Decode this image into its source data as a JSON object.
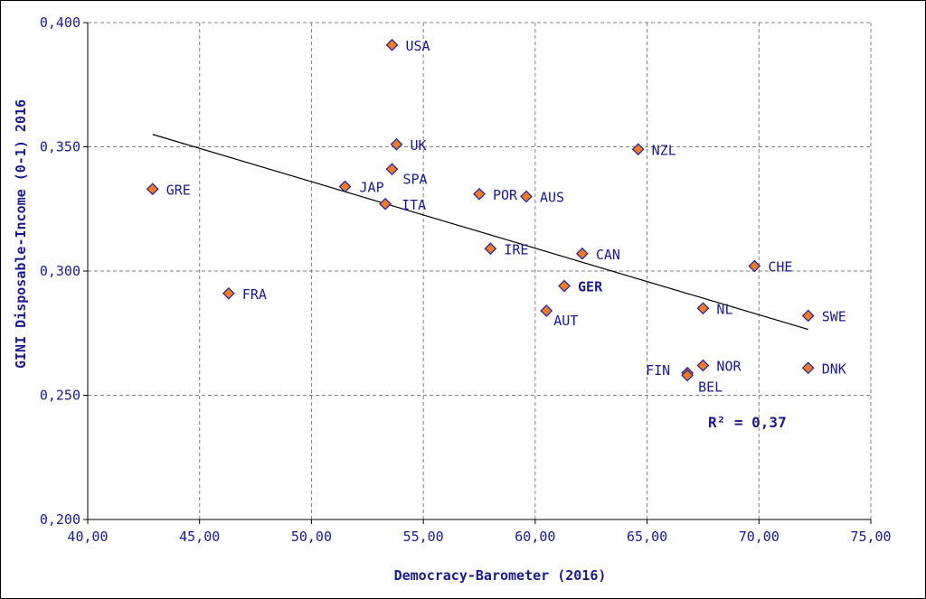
{
  "chart_data": {
    "type": "scatter",
    "xlabel": "Democracy-Barometer (2016)",
    "ylabel": "GINI Disposable-Income (0-1) 2016",
    "xlim": [
      40,
      75
    ],
    "ylim": [
      0.2,
      0.4
    ],
    "x_ticks": [
      40,
      45,
      50,
      55,
      60,
      65,
      70,
      75
    ],
    "x_tick_labels": [
      "40,00",
      "45,00",
      "50,00",
      "55,00",
      "60,00",
      "65,00",
      "70,00",
      "75,00"
    ],
    "y_ticks": [
      0.2,
      0.25,
      0.3,
      0.35,
      0.4
    ],
    "y_tick_labels": [
      "0,200",
      "0,250",
      "0,300",
      "0,350",
      "0,400"
    ],
    "grid": true,
    "points": [
      {
        "label": "USA",
        "x": 53.6,
        "y": 0.391,
        "highlight": false
      },
      {
        "label": "UK",
        "x": 53.8,
        "y": 0.351,
        "highlight": false
      },
      {
        "label": "NZL",
        "x": 64.6,
        "y": 0.349,
        "highlight": false
      },
      {
        "label": "SPA",
        "x": 53.6,
        "y": 0.341,
        "highlight": false
      },
      {
        "label": "JAP",
        "x": 51.5,
        "y": 0.334,
        "highlight": false
      },
      {
        "label": "GRE",
        "x": 42.9,
        "y": 0.333,
        "highlight": false
      },
      {
        "label": "POR",
        "x": 57.5,
        "y": 0.331,
        "highlight": false
      },
      {
        "label": "AUS",
        "x": 59.6,
        "y": 0.33,
        "highlight": false
      },
      {
        "label": "ITA",
        "x": 53.3,
        "y": 0.327,
        "highlight": false
      },
      {
        "label": "IRE",
        "x": 58.0,
        "y": 0.309,
        "highlight": false
      },
      {
        "label": "CAN",
        "x": 62.1,
        "y": 0.307,
        "highlight": false
      },
      {
        "label": "CHE",
        "x": 69.8,
        "y": 0.302,
        "highlight": false
      },
      {
        "label": "GER",
        "x": 61.3,
        "y": 0.294,
        "highlight": true
      },
      {
        "label": "FRA",
        "x": 46.3,
        "y": 0.291,
        "highlight": false
      },
      {
        "label": "NL",
        "x": 67.5,
        "y": 0.285,
        "highlight": false
      },
      {
        "label": "AUT",
        "x": 60.5,
        "y": 0.284,
        "highlight": false
      },
      {
        "label": "SWE",
        "x": 72.2,
        "y": 0.282,
        "highlight": false
      },
      {
        "label": "NOR",
        "x": 67.5,
        "y": 0.262,
        "highlight": false
      },
      {
        "label": "DNK",
        "x": 72.2,
        "y": 0.261,
        "highlight": false
      },
      {
        "label": "FIN",
        "x": 66.8,
        "y": 0.259,
        "highlight": false
      },
      {
        "label": "BEL",
        "x": 66.8,
        "y": 0.258,
        "highlight": false
      }
    ],
    "trendline": {
      "x": [
        42.9,
        72.2
      ],
      "y": [
        0.355,
        0.2765
      ]
    },
    "annotation": "R² = 0,37",
    "colors": {
      "marker_fill": "#f47b20",
      "marker_stroke": "#2b2b9a",
      "text": "#1a1a8c",
      "highlight_text": "#8b1a1a",
      "grid": "#808080",
      "trendline": "#000000"
    }
  }
}
